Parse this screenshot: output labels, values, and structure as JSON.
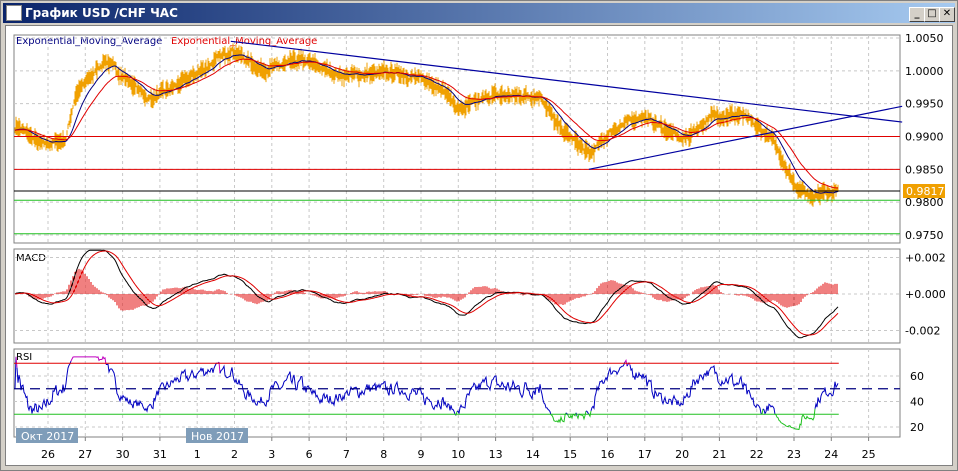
{
  "window": {
    "title": "График USD /CHF  ЧАС",
    "minimize": "_",
    "maximize": "□",
    "close": "✕"
  },
  "legend": {
    "ema_blue": "Exponential_Moving_Average",
    "ema_red": "Exponential_Moving_Average",
    "macd": "MACD",
    "rsi": "RSI"
  },
  "colors": {
    "price": "#f0a000",
    "ema_fast": "#000080",
    "ema_slow": "#e00000",
    "trend": "#0000a0",
    "support": "#20c020",
    "resistance": "#e00000",
    "current": "#000000",
    "macd_hist": "#e00000",
    "rsi_line": "#0000c0",
    "rsi_ob": "#c000c0",
    "rsi_os": "#20c020",
    "month_tag": "#7f9db9"
  },
  "chart_data": [
    {
      "type": "line",
      "name": "USD/CHF H1",
      "y_ticks": [
        "1.0050",
        "1.0000",
        "0.9950",
        "0.9900",
        "0.9850",
        "0.9800",
        "0.9750"
      ],
      "ylim": [
        0.974,
        1.006
      ],
      "x_labels": [
        "26",
        "27",
        "30",
        "31",
        "1",
        "2",
        "3",
        "6",
        "7",
        "8",
        "9",
        "10",
        "13",
        "14",
        "15",
        "16",
        "17",
        "20",
        "21",
        "22",
        "23",
        "24",
        "25"
      ],
      "month_labels": [
        {
          "label": "Окт 2017",
          "at": "26"
        },
        {
          "label": "Нов 2017",
          "at": "1"
        }
      ],
      "price_path": [
        [
          -0.9,
          0.9918
        ],
        [
          -0.2,
          0.9887
        ],
        [
          0.45,
          0.9895
        ],
        [
          0.7,
          0.9963
        ],
        [
          1.5,
          1.0017
        ],
        [
          2.1,
          0.9986
        ],
        [
          2.7,
          0.9956
        ],
        [
          3.7,
          0.9986
        ],
        [
          4.9,
          1.0032
        ],
        [
          5.7,
          1.0001
        ],
        [
          6.8,
          1.0016
        ],
        [
          7.8,
          0.9993
        ],
        [
          9.4,
          0.9997
        ],
        [
          10.5,
          0.9977
        ],
        [
          11,
          0.994
        ],
        [
          11.8,
          0.9962
        ],
        [
          13.2,
          0.9962
        ],
        [
          13.6,
          0.9918
        ],
        [
          14.5,
          0.9872
        ],
        [
          15.1,
          0.991
        ],
        [
          15.9,
          0.9932
        ],
        [
          17,
          0.9895
        ],
        [
          17.8,
          0.9932
        ],
        [
          18.6,
          0.9932
        ],
        [
          19.4,
          0.9895
        ],
        [
          20,
          0.9826
        ],
        [
          20.4,
          0.981
        ],
        [
          21.2,
          0.9821
        ]
      ],
      "current_price": "0.9817",
      "hlines": [
        {
          "value": 0.99,
          "color": "#e00000"
        },
        {
          "value": 0.985,
          "color": "#e00000"
        },
        {
          "value": 0.9817,
          "color": "#000000"
        },
        {
          "value": 0.9803,
          "color": "#20c020"
        },
        {
          "value": 0.9752,
          "color": "#20c020"
        }
      ],
      "trendlines": [
        {
          "from": [
            4.9,
            1.0045
          ],
          "to": [
            22.9,
            0.9922
          ]
        },
        {
          "from": [
            14.5,
            0.985
          ],
          "to": [
            22.9,
            0.9946
          ]
        }
      ]
    },
    {
      "type": "bar",
      "name": "MACD",
      "y_ticks": [
        "+0.002",
        "+0.000",
        "-0.002"
      ],
      "ylim": [
        -0.0025,
        0.0025
      ]
    },
    {
      "type": "line",
      "name": "RSI",
      "y_ticks": [
        "60",
        "40",
        "20"
      ],
      "ylim": [
        12,
        82
      ],
      "levels": [
        70,
        50,
        30
      ]
    }
  ]
}
